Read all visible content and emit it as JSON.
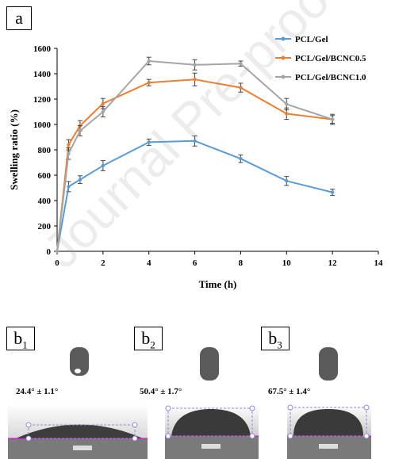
{
  "panel_a_label": "a",
  "chart_data": {
    "type": "line",
    "xlabel": "Time (h)",
    "ylabel": "Swelling ratio (%)",
    "xlim": [
      0,
      14
    ],
    "ylim": [
      0,
      1600
    ],
    "xticks": [
      "0",
      "2",
      "4",
      "6",
      "8",
      "10",
      "12",
      "14"
    ],
    "yticks": [
      "0",
      "200",
      "400",
      "600",
      "800",
      "1000",
      "1200",
      "1400",
      "1600"
    ],
    "grid": false,
    "legend_position": "top-right",
    "x": [
      0,
      0.5,
      1,
      2,
      4,
      6,
      8,
      10,
      12
    ],
    "series": [
      {
        "name": "PCL/Gel",
        "color": "#5b9bd5",
        "values": [
          0,
          510,
          565,
          675,
          860,
          870,
          730,
          555,
          465
        ],
        "errors": [
          0,
          40,
          30,
          40,
          25,
          40,
          30,
          35,
          25
        ]
      },
      {
        "name": "PCL/Gel/BCNC0.5",
        "color": "#ed7d31",
        "values": [
          0,
          840,
          990,
          1165,
          1330,
          1355,
          1290,
          1085,
          1040
        ],
        "errors": [
          0,
          40,
          40,
          40,
          25,
          50,
          35,
          45,
          30
        ]
      },
      {
        "name": "PCL/Gel/BCNC1.0",
        "color": "#a5a5a5",
        "values": [
          0,
          770,
          950,
          1100,
          1500,
          1470,
          1480,
          1160,
          1040
        ],
        "errors": [
          0,
          45,
          40,
          40,
          30,
          40,
          20,
          45,
          40
        ]
      }
    ]
  },
  "panel_b": [
    {
      "label": "b",
      "sub": "1",
      "angle_text": "24.4° ± 1.1°",
      "angle": 24.4
    },
    {
      "label": "b",
      "sub": "2",
      "angle_text": "50.4° ± 1.7°",
      "angle": 50.4
    },
    {
      "label": "b",
      "sub": "3",
      "angle_text": "67.5° ± 1.4°",
      "angle": 67.5
    }
  ],
  "watermark": "Journal Pre-proof"
}
